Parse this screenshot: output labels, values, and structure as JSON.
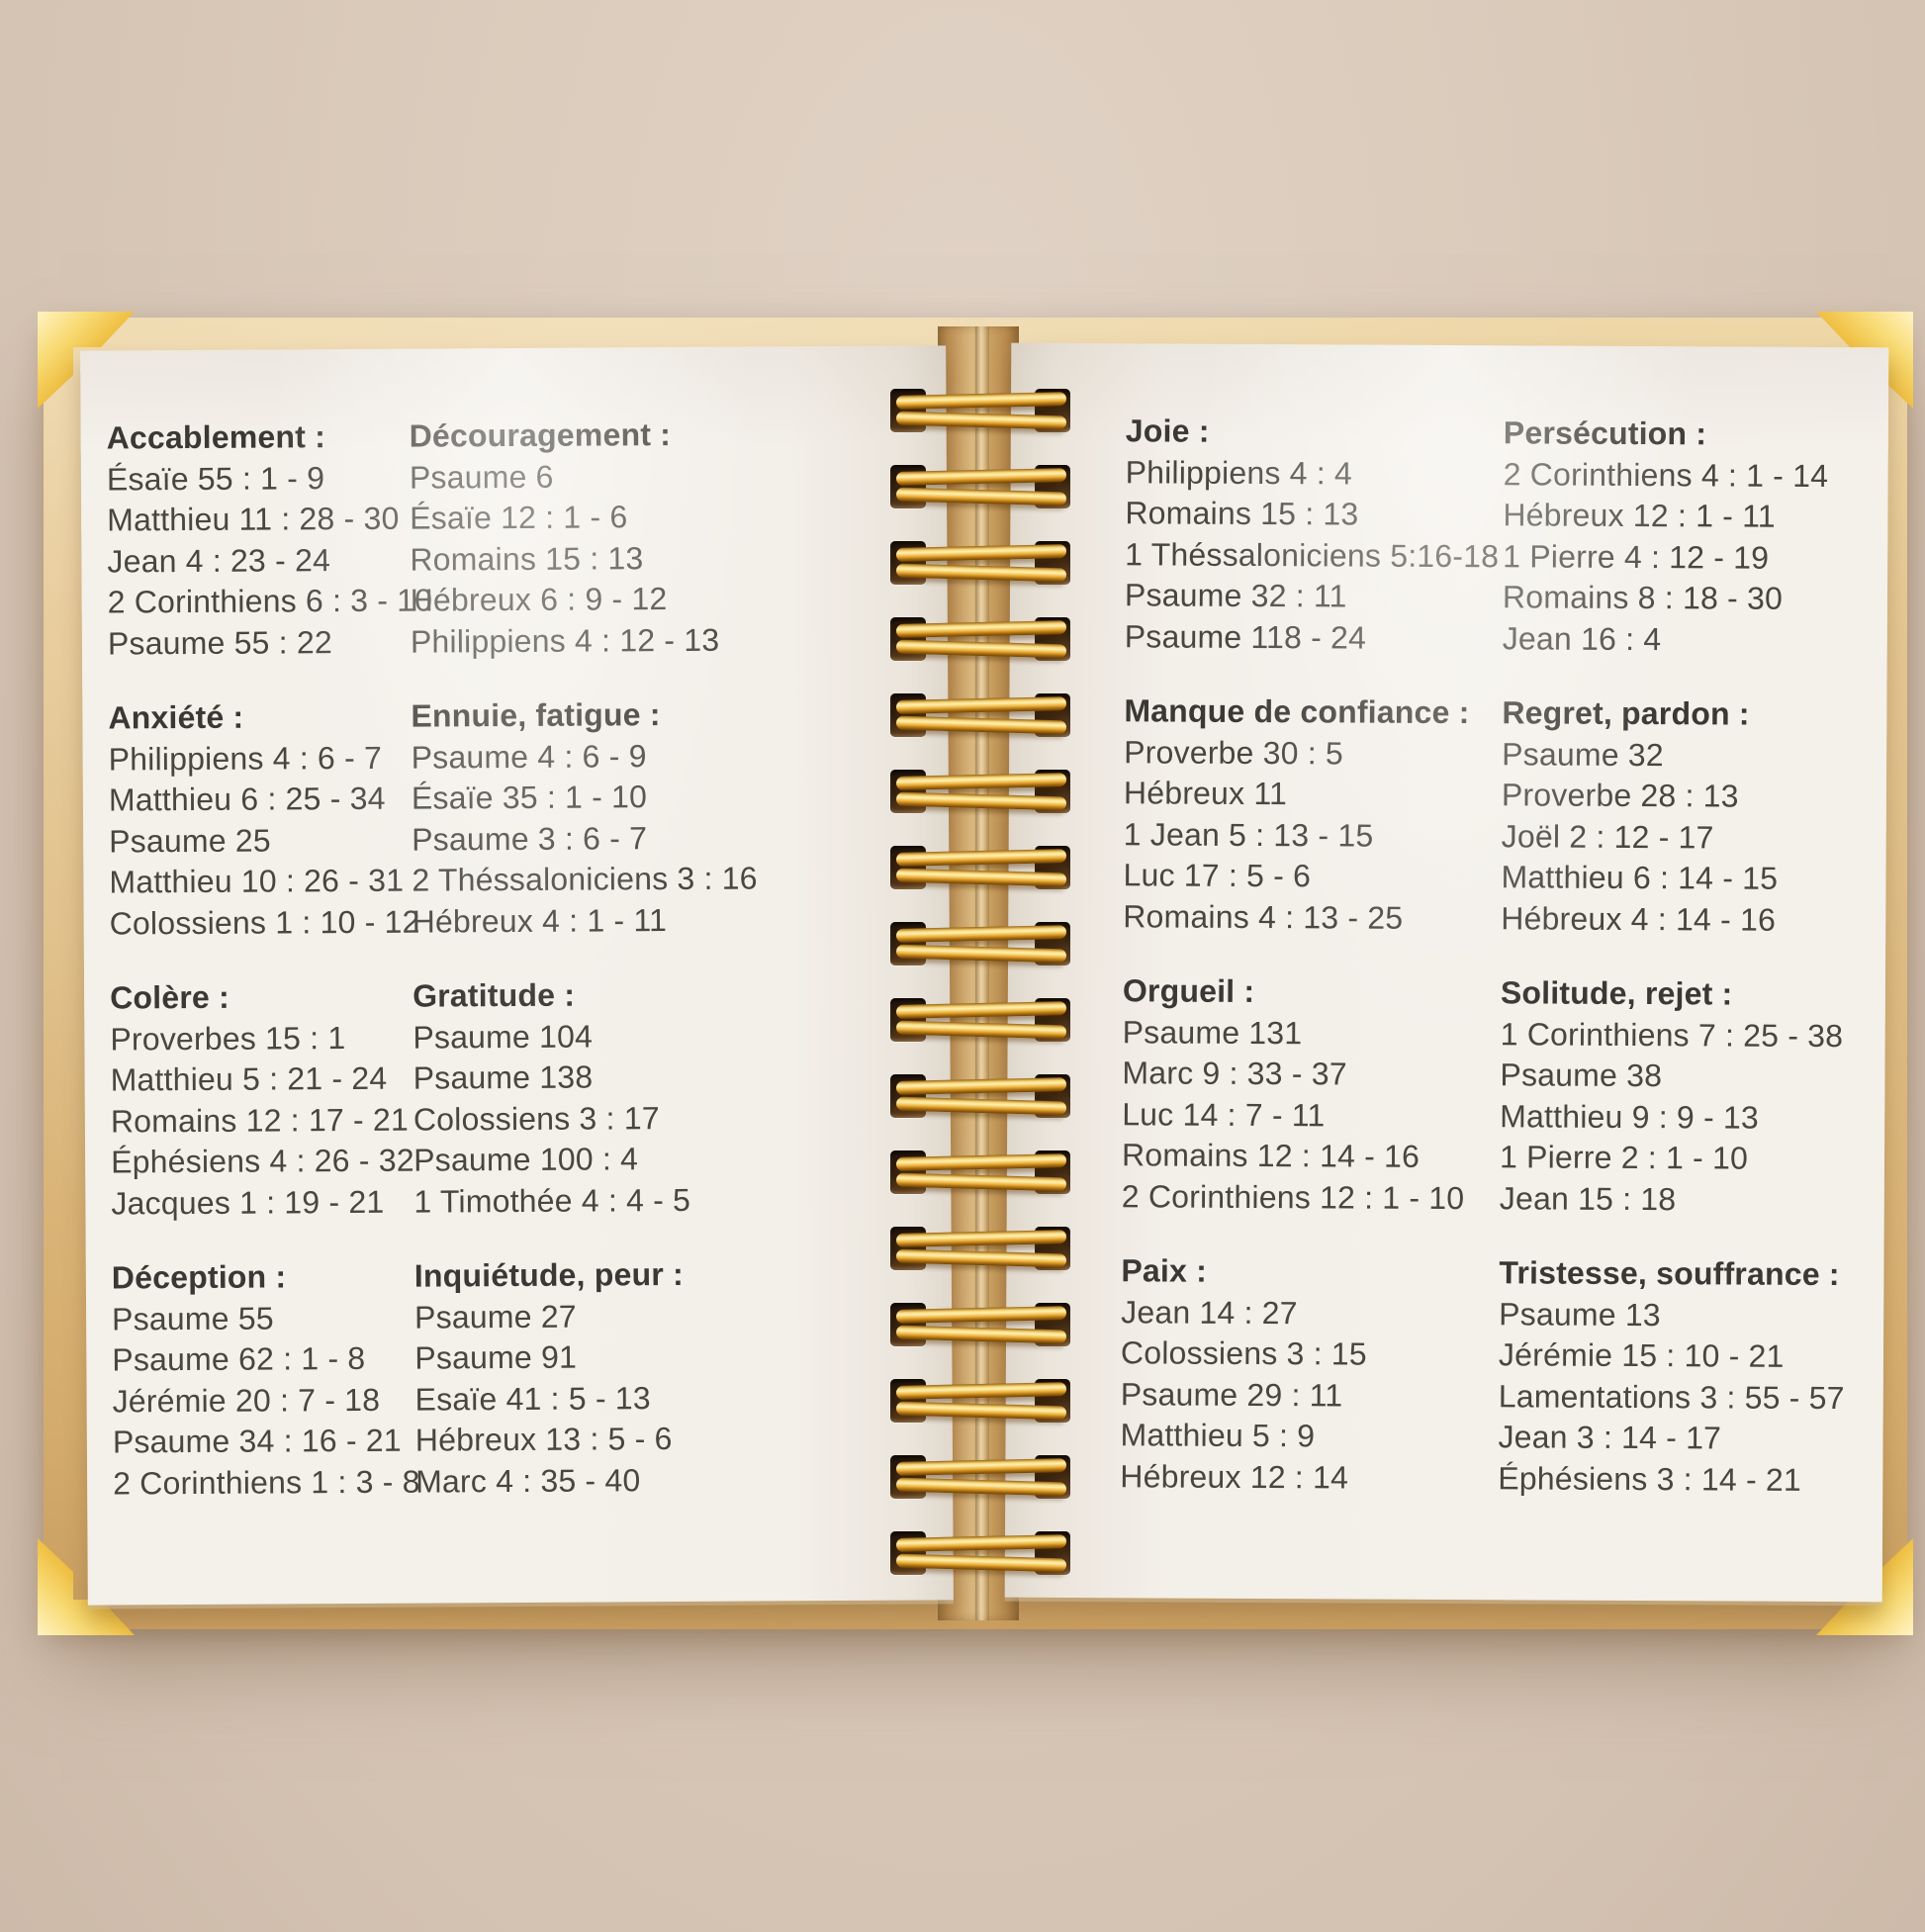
{
  "notebook": {
    "description": "Open spiral notebook with bible verse lists grouped by emotion (French)",
    "palette": {
      "background": "#dacaba",
      "cover_tan": "#ddba80",
      "page_cream": "#f3efe9",
      "gold": "#eebd3e",
      "heading_text": "#3a3834",
      "body_text": "#48463f"
    },
    "left_page": {
      "columns": [
        {
          "sections": [
            {
              "title": "Accablement :",
              "items": [
                "Ésaïe 55 : 1 - 9",
                "Matthieu 11 : 28 - 30",
                "Jean 4 : 23 - 24",
                "2 Corinthiens 6 : 3 - 10",
                "Psaume 55 : 22"
              ]
            },
            {
              "title": "Anxiété :",
              "items": [
                "Philippiens 4 : 6 - 7",
                "Matthieu 6 : 25 - 34",
                "Psaume 25",
                "Matthieu 10 : 26 - 31",
                "Colossiens 1 : 10 - 12"
              ]
            },
            {
              "title": "Colère :",
              "items": [
                "Proverbes 15 : 1",
                "Matthieu 5 : 21 - 24",
                "Romains 12 : 17 - 21",
                "Éphésiens 4 : 26 - 32",
                "Jacques 1 : 19 - 21"
              ]
            },
            {
              "title": "Déception :",
              "items": [
                "Psaume 55",
                "Psaume 62 : 1 - 8",
                "Jérémie 20 : 7 - 18",
                "Psaume 34 : 16 - 21",
                "2 Corinthiens 1 : 3 - 8"
              ]
            }
          ]
        },
        {
          "sections": [
            {
              "title": "Découragement :",
              "items": [
                "Psaume 6",
                "Ésaïe 12 : 1 - 6",
                "Romains 15 : 13",
                "Hébreux 6 : 9 - 12",
                "Philippiens 4 : 12 - 13"
              ]
            },
            {
              "title": "Ennuie, fatigue :",
              "items": [
                "Psaume 4 : 6 - 9",
                "Ésaïe 35 : 1 - 10",
                "Psaume 3 : 6 - 7",
                "2 Théssaloniciens 3 : 16",
                "Hébreux 4 : 1 - 11"
              ]
            },
            {
              "title": "Gratitude :",
              "items": [
                "Psaume 104",
                "Psaume 138",
                "Colossiens 3 : 17",
                "Psaume 100 : 4",
                "1 Timothée 4 : 4 - 5"
              ]
            },
            {
              "title": "Inquiétude, peur :",
              "items": [
                "Psaume 27",
                "Psaume 91",
                "Esaïe 41 : 5 - 13",
                "Hébreux 13 : 5 - 6",
                "Marc 4 : 35 - 40"
              ]
            }
          ]
        }
      ]
    },
    "right_page": {
      "columns": [
        {
          "sections": [
            {
              "title": "Joie :",
              "items": [
                "Philippiens 4 : 4",
                "Romains 15 : 13",
                "1 Théssaloniciens 5:16-18",
                "Psaume 32 : 11",
                "Psaume 118 - 24"
              ]
            },
            {
              "title": "Manque de confiance :",
              "items": [
                "Proverbe 30 : 5",
                "Hébreux 11",
                "1 Jean 5 : 13 - 15",
                "Luc 17 : 5 - 6",
                "Romains 4 : 13 - 25"
              ]
            },
            {
              "title": "Orgueil :",
              "items": [
                "Psaume 131",
                "Marc 9 : 33 - 37",
                "Luc 14 : 7 - 11",
                "Romains 12 : 14 - 16",
                "2 Corinthiens 12 : 1 - 10"
              ]
            },
            {
              "title": "Paix :",
              "items": [
                "Jean 14 : 27",
                "Colossiens 3 : 15",
                "Psaume 29 : 11",
                "Matthieu 5 : 9",
                "Hébreux 12 : 14"
              ]
            }
          ]
        },
        {
          "sections": [
            {
              "title": "Persécution :",
              "items": [
                "2 Corinthiens 4 : 1 - 14",
                "Hébreux 12 : 1 - 11",
                "1 Pierre 4 : 12 - 19",
                "Romains 8 : 18 - 30",
                "Jean 16 : 4"
              ]
            },
            {
              "title": "Regret, pardon :",
              "items": [
                "Psaume 32",
                "Proverbe 28 : 13",
                "Joël 2 : 12 - 17",
                "Matthieu 6 : 14 - 15",
                "Hébreux 4 : 14 - 16"
              ]
            },
            {
              "title": "Solitude, rejet :",
              "items": [
                "1 Corinthiens 7 : 25 - 38",
                "Psaume 38",
                "Matthieu 9 : 9 - 13",
                "1 Pierre 2 : 1 - 10",
                "Jean 15 : 18"
              ]
            },
            {
              "title": "Tristesse, souffrance :",
              "items": [
                "Psaume 13",
                "Jérémie 15 : 10 - 21",
                "Lamentations 3 : 55 - 57",
                "Jean 3 : 14 - 17",
                "Éphésiens 3 : 14 - 21"
              ]
            }
          ]
        }
      ]
    },
    "spiral": {
      "ring_count": 16
    }
  }
}
